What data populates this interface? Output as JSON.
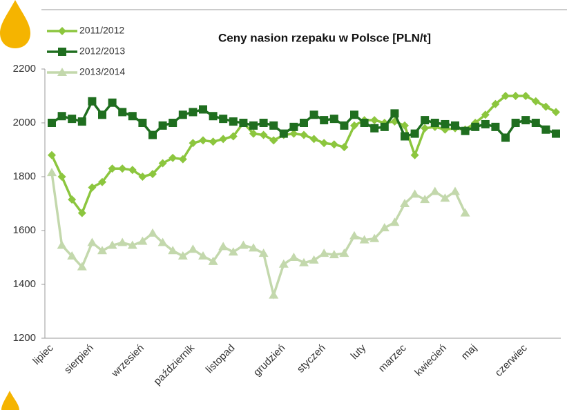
{
  "chart_data": {
    "type": "line",
    "title": "Ceny nasion rzepaku w Polsce [PLN/t]",
    "categories": [
      "lipiec",
      null,
      null,
      null,
      "sierpień",
      null,
      null,
      null,
      null,
      "wrzesień",
      null,
      null,
      null,
      null,
      "październik",
      null,
      null,
      null,
      "listopad",
      null,
      null,
      null,
      null,
      "grudzień",
      null,
      null,
      null,
      "styczeń",
      null,
      null,
      null,
      "luty",
      null,
      null,
      null,
      "marzec",
      null,
      null,
      null,
      "kwiecień",
      null,
      null,
      "maj",
      null,
      null,
      null,
      null,
      "czerwiec",
      null,
      null,
      null
    ],
    "series": [
      {
        "name": "2011/2012",
        "color": "#8cc63e",
        "marker": "diamond",
        "values": [
          1880,
          1800,
          1715,
          1665,
          1760,
          1780,
          1830,
          1830,
          1825,
          1800,
          1810,
          1850,
          1870,
          1865,
          1925,
          1935,
          1930,
          1940,
          1950,
          2000,
          1960,
          1955,
          1935,
          1955,
          1960,
          1955,
          1940,
          1925,
          1920,
          1910,
          1990,
          2010,
          2010,
          2000,
          2005,
          1990,
          1880,
          1980,
          1985,
          1975,
          1980,
          1975,
          2000,
          2030,
          2070,
          2100,
          2100,
          2100,
          2080,
          2060,
          2040
        ]
      },
      {
        "name": "2012/2013",
        "color": "#1f6e1f",
        "marker": "square",
        "values": [
          2000,
          2025,
          2015,
          2005,
          2080,
          2030,
          2075,
          2040,
          2025,
          2000,
          1955,
          1990,
          2000,
          2030,
          2040,
          2050,
          2025,
          2015,
          2005,
          2000,
          1990,
          2000,
          1990,
          1960,
          1985,
          2000,
          2030,
          2010,
          2015,
          1990,
          2030,
          2000,
          1980,
          1985,
          2035,
          1950,
          1960,
          2010,
          2000,
          1995,
          1990,
          1970,
          1985,
          1995,
          1985,
          1945,
          2000,
          2010,
          2000,
          1975,
          1960
        ]
      },
      {
        "name": "2013/2014",
        "color": "#c3d8ac",
        "marker": "triangle",
        "values": [
          1815,
          1545,
          1505,
          1465,
          1555,
          1525,
          1545,
          1555,
          1545,
          1560,
          1590,
          1555,
          1525,
          1505,
          1530,
          1505,
          1485,
          1540,
          1520,
          1545,
          1535,
          1515,
          1360,
          1475,
          1500,
          1480,
          1490,
          1515,
          1510,
          1515,
          1580,
          1565,
          1570,
          1610,
          1630,
          1700,
          1735,
          1715,
          1745,
          1720,
          1745,
          1665,
          null,
          null,
          null,
          null,
          null,
          null,
          null,
          null,
          null
        ]
      }
    ],
    "ylim": [
      1200,
      2200
    ],
    "yticks": [
      1200,
      1400,
      1600,
      1800,
      2000,
      2200
    ]
  }
}
